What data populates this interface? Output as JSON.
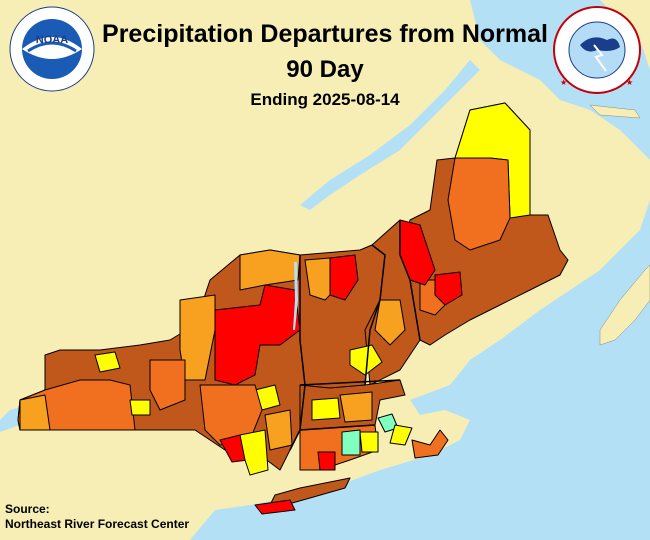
{
  "header": {
    "title": "Precipitation Departures from Normal",
    "period": "90 Day",
    "ending": "Ending 2025-08-14"
  },
  "source": {
    "label": "Source:",
    "name": "Northeast River Forecast Center"
  },
  "logos": {
    "noaa": {
      "icon": "noaa-logo-icon",
      "center_text": "NOAA",
      "ring_text": "NATIONAL OCEANIC AND ATMOSPHERIC ADMINISTRATION · U.S. DEPARTMENT OF COMMERCE"
    },
    "nws": {
      "icon": "nws-logo-icon",
      "ring_text": "NATIONAL WEATHER SERVICE"
    }
  },
  "colors": {
    "background_land": "#f6eeb4",
    "water": "#b4e0f6",
    "brown": "#c0581c",
    "dark_orange": "#f07020",
    "orange": "#f8a020",
    "red": "#ff0000",
    "dark_red": "#d00000",
    "yellow": "#ffff00",
    "cyan": "#80ffc0",
    "border": "#000000"
  }
}
